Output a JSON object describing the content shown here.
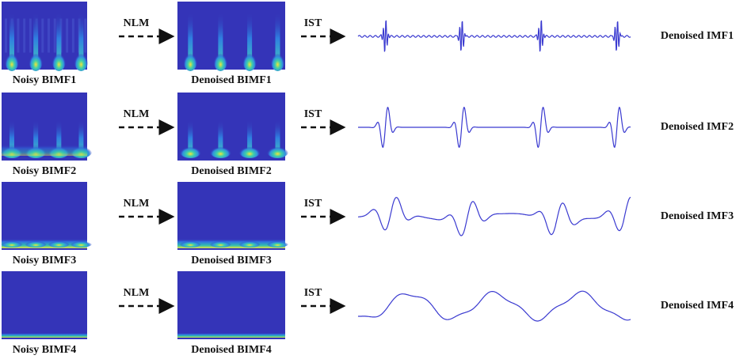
{
  "rows": [
    {
      "noisy": "Noisy BIMF1",
      "method1": "NLM",
      "denoised": "Denoised BIMF1",
      "method2": "IST",
      "output": "Denoised IMF1"
    },
    {
      "noisy": "Noisy BIMF2",
      "method1": "NLM",
      "denoised": "Denoised BIMF2",
      "method2": "IST",
      "output": "Denoised IMF2"
    },
    {
      "noisy": "Noisy BIMF3",
      "method1": "NLM",
      "denoised": "Denoised BIMF3",
      "method2": "IST",
      "output": "Denoised IMF3"
    },
    {
      "noisy": "Noisy BIMF4",
      "method1": "NLM",
      "denoised": "Denoised BIMF4",
      "method2": "IST",
      "output": "Denoised IMF4"
    }
  ]
}
